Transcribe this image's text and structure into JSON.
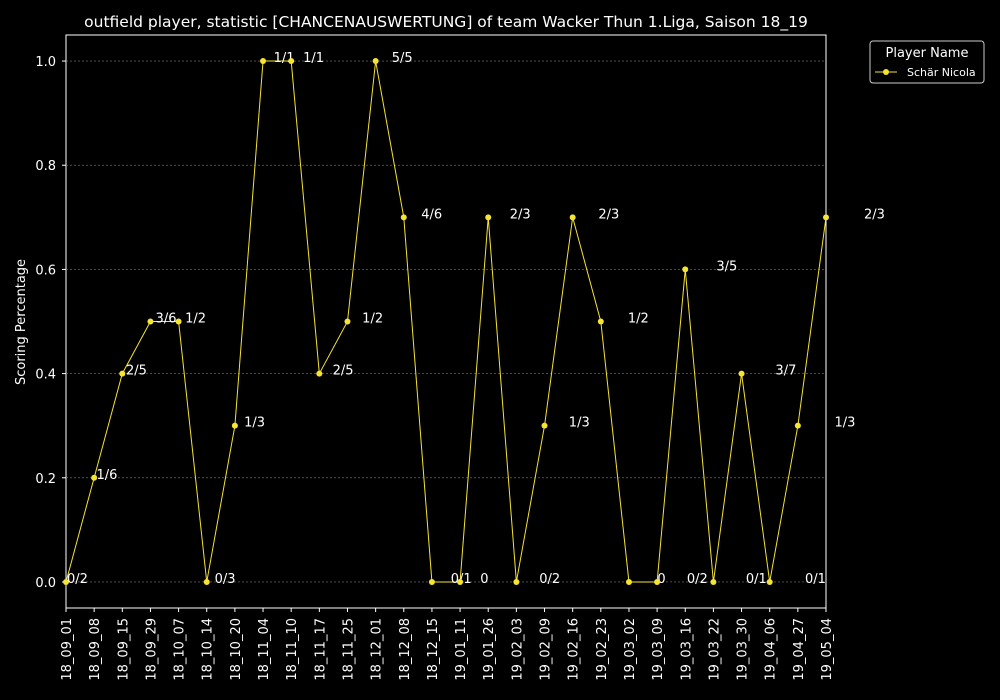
{
  "chart_data": {
    "type": "line",
    "title": "outfield player, statistic [CHANCENAUSWERTUNG] of team Wacker Thun 1.Liga, Saison 18_19",
    "y_label": "Scoring Percentage",
    "legend_title": "Player Name",
    "legend_position": "upper right",
    "grid": true,
    "categories": [
      "18_09_01",
      "18_09_08",
      "18_09_15",
      "18_09_29",
      "18_10_07",
      "18_10_14",
      "18_10_20",
      "18_11_04",
      "18_11_10",
      "18_11_17",
      "18_11_25",
      "18_12_01",
      "18_12_08",
      "18_12_15",
      "19_01_11",
      "19_01_26",
      "19_02_03",
      "19_02_09",
      "19_02_16",
      "19_02_23",
      "19_03_02",
      "19_03_09",
      "19_03_16",
      "19_03_22",
      "19_03_30",
      "19_04_06",
      "19_04_27",
      "19_05_04"
    ],
    "series": [
      {
        "name": "Schär Nicola",
        "color": "#f5e430",
        "values": [
          0,
          0.2,
          0.4,
          0.5,
          0.5,
          0,
          0.3,
          1,
          1,
          0.4,
          0.5,
          1,
          0.7,
          0,
          0,
          0.7,
          0,
          0.3,
          0.7,
          0.5,
          0,
          0,
          0.6,
          0,
          0.4,
          0,
          0.3,
          0.7
        ],
        "value_labels": [
          "0/2",
          "1/6",
          "2/5",
          "3/6",
          "1/2",
          "0/3",
          "1/3",
          "1/1",
          "1/1",
          "2/5",
          "1/2",
          "5/5",
          "4/6",
          "0/1",
          "0",
          "2/3",
          "0/2",
          "1/3",
          "2/3",
          "1/2",
          "0",
          "0/2",
          "3/5",
          "0/1",
          "3/7",
          "0/1",
          "1/3",
          "2/3"
        ]
      }
    ],
    "ylim": [
      -0.05,
      1.05
    ],
    "yticks": [
      {
        "value": 0,
        "label": "0.0"
      },
      0.2,
      0.4,
      0.6,
      0.8,
      {
        "value": 1,
        "label": "1.0"
      }
    ]
  }
}
